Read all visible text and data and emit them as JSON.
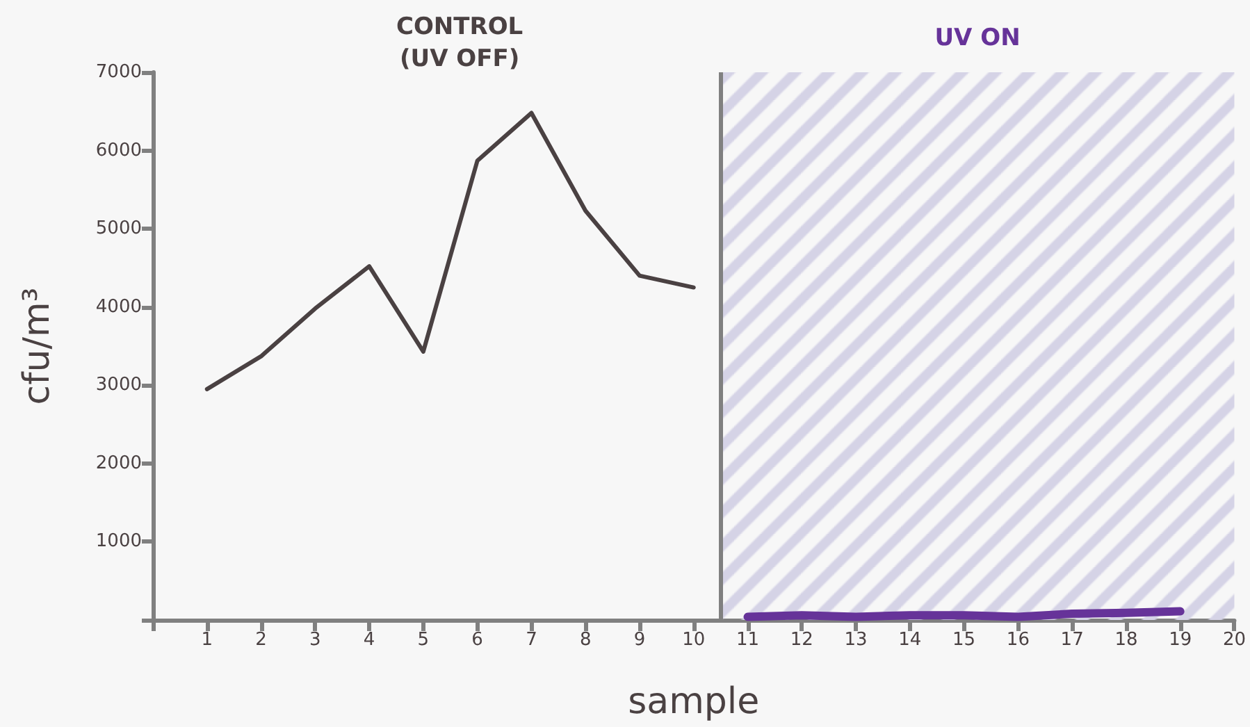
{
  "chart_data": {
    "type": "line",
    "xlabel": "sample",
    "ylabel": "cfu/m³",
    "series": [
      {
        "color": "#4a4142",
        "x": [
          1,
          2,
          3,
          4,
          5,
          6,
          7,
          8,
          9,
          10
        ],
        "values": [
          2950,
          3370,
          3980,
          4520,
          3430,
          5870,
          6480,
          5230,
          4400,
          4250
        ]
      },
      {
        "color": "#663399",
        "x": [
          11,
          12,
          13,
          14,
          15,
          16,
          17,
          18,
          19
        ],
        "values": [
          40,
          60,
          40,
          60,
          60,
          40,
          80,
          90,
          110
        ]
      }
    ],
    "xlim": [
      0,
      20
    ],
    "xticks": [
      {
        "value": 0,
        "label": null
      },
      1,
      2,
      3,
      4,
      5,
      6,
      7,
      8,
      9,
      10,
      11,
      12,
      13,
      14,
      15,
      16,
      17,
      18,
      19,
      20
    ],
    "ylim": [
      0,
      7000
    ],
    "yticks": [
      {
        "value": 0,
        "label": null
      },
      1000,
      2000,
      3000,
      4000,
      5000,
      6000,
      7000
    ],
    "bands": [
      {
        "axis": "x",
        "from": 10.5,
        "to": 20,
        "label": "UV ON",
        "color": "#d5d3e6"
      }
    ],
    "ref_lines": [
      {
        "axis": "x",
        "value": 10.5,
        "color": "#808080"
      }
    ],
    "annotations": [
      "CONTROL\n(UV OFF)"
    ],
    "grid": false,
    "marker": "none",
    "line_style": "solid"
  }
}
